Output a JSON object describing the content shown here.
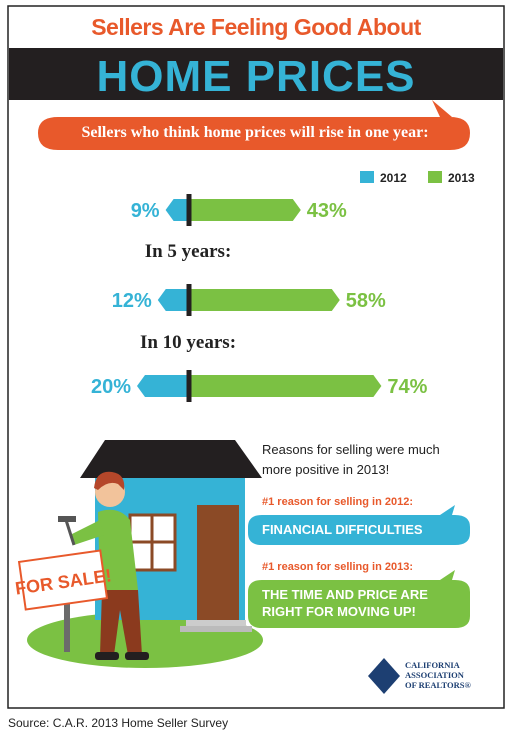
{
  "header": {
    "kicker": "Sellers Are Feeling Good About",
    "title": "HOME PRICES",
    "subtitle": "Sellers who think home prices will rise in one year:"
  },
  "legend": [
    {
      "name": "2012",
      "color": "#35b3d6"
    },
    {
      "name": "2013",
      "color": "#7bc143"
    }
  ],
  "groups": [
    {
      "values": [
        9,
        43
      ],
      "value_labels": [
        "9%",
        "43%"
      ]
    },
    {
      "label": "In 5 years:",
      "values": [
        12,
        58
      ],
      "value_labels": [
        "12%",
        "58%"
      ]
    },
    {
      "label": "In 10 years:",
      "values": [
        20,
        74
      ],
      "value_labels": [
        "20%",
        "74%"
      ]
    }
  ],
  "reasons": {
    "intro": "Reasons for selling were much more positive in 2013!",
    "items": [
      {
        "heading": "#1 reason for selling in 2012:",
        "text": "FINANCIAL DIFFICULTIES"
      },
      {
        "heading": "#1 reason for selling in 2013:",
        "text": "THE TIME AND PRICE ARE RIGHT FOR MOVING UP!"
      }
    ]
  },
  "sign": "FOR SALE!",
  "logo": [
    "CALIFORNIA",
    "ASSOCIATION",
    "OF REALTORS®"
  ],
  "source": "Source: C.A.R. 2013 Home Seller Survey"
}
